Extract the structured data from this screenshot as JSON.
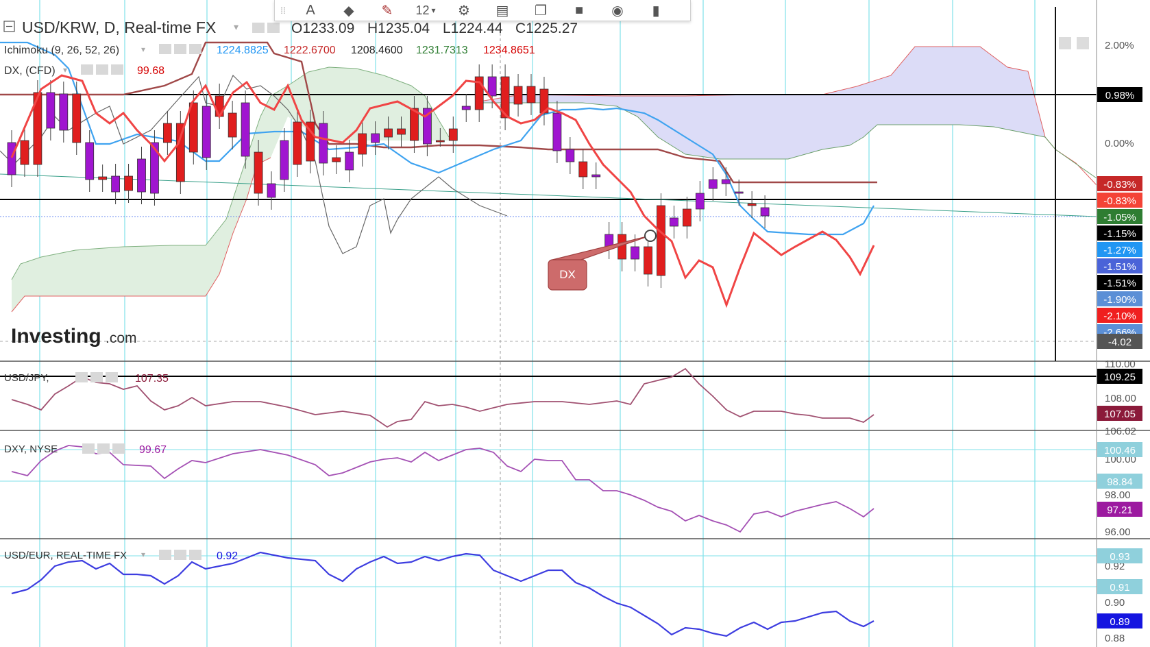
{
  "header": {
    "symbol": "USD/KRW, D, Real-time FX",
    "o": "O1233.09",
    "h": "H1235.04",
    "l": "L1224.44",
    "c": "C1225.27"
  },
  "ichimoku": {
    "label": "Ichimoku (9, 26, 52, 26)",
    "values": [
      "1224.8825",
      "1222.6700",
      "1208.4600",
      "1231.7313",
      "1234.8651"
    ],
    "colors": [
      "#2196f3",
      "#c62828",
      "#222222",
      "#2e7d32",
      "#d50000"
    ]
  },
  "dx_indicator": {
    "label": "DX, (CFD)",
    "value": "99.68",
    "color": "#d50000"
  },
  "toolbar": {
    "font_size": "12"
  },
  "watermark": {
    "brand": "Investing",
    "suffix": ".com"
  },
  "callout": {
    "text": "DX"
  },
  "main_axis": {
    "ticks": [
      "2.00%",
      "0.00%"
    ],
    "badges": [
      {
        "text": "0.98%",
        "bg": "#000000"
      },
      {
        "text": "-0.83%",
        "bg": "#c62828"
      },
      {
        "text": "-0.83%",
        "bg": "#f44336"
      },
      {
        "text": "-1.05%",
        "bg": "#2e7d32"
      },
      {
        "text": "-1.15%",
        "bg": "#000000"
      },
      {
        "text": "-1.27%",
        "bg": "#2196f3"
      },
      {
        "text": "-1.51%",
        "bg": "#4a63d8"
      },
      {
        "text": "-1.51%",
        "bg": "#000000"
      },
      {
        "text": "-1.90%",
        "bg": "#5b8fd6"
      },
      {
        "text": "-2.10%",
        "bg": "#f01f1f"
      },
      {
        "text": "-2.66%",
        "bg": "#5b8fd6"
      },
      {
        "text": "-4.02",
        "bg": "#555555"
      }
    ]
  },
  "panes": {
    "jpy": {
      "label": "USD/JPY,",
      "value": "107.35",
      "color": "#a05070",
      "ticks": [
        "110.00",
        "108.00",
        "106.02"
      ],
      "badges": [
        {
          "text": "109.25",
          "bg": "#000000"
        },
        {
          "text": "107.05",
          "bg": "#8b1a3a"
        }
      ]
    },
    "dxy": {
      "label": "DXY, NYSE",
      "value": "99.67",
      "color": "#a450b4",
      "ticks": [
        "100.00",
        "98.00",
        "96.00"
      ],
      "badges": [
        {
          "text": "100.46",
          "bg": "#8fd0dc"
        },
        {
          "text": "98.84",
          "bg": "#8fd0dc"
        },
        {
          "text": "97.21",
          "bg": "#9c1aa0"
        }
      ]
    },
    "eur": {
      "label": "USD/EUR, REAL-TIME FX",
      "value": "0.92",
      "color": "#3d3de0",
      "ticks": [
        "0.92",
        "0.90",
        "0.88"
      ],
      "badges": [
        {
          "text": "0.93",
          "bg": "#8fd0dc"
        },
        {
          "text": "0.91",
          "bg": "#8fd0dc"
        },
        {
          "text": "0.89",
          "bg": "#1515e0"
        }
      ]
    }
  },
  "chart_data": {
    "type": "candlestick",
    "candles": [
      [
        0,
        0,
        4
      ],
      [
        1,
        0,
        0
      ],
      [
        1,
        1,
        6
      ],
      [
        0,
        1,
        3
      ],
      [
        0,
        1,
        3
      ],
      [
        1,
        0,
        1
      ],
      [
        0,
        0,
        1
      ],
      [
        1,
        1,
        5
      ],
      [
        0,
        1,
        3
      ],
      [
        1,
        1,
        3
      ],
      [
        0,
        0,
        1
      ],
      [
        0,
        0,
        0
      ],
      [
        1,
        1,
        3
      ],
      [
        1,
        0,
        3
      ],
      [
        1,
        1,
        4
      ],
      [
        0,
        1,
        3
      ],
      [
        1,
        1,
        1
      ],
      [
        1,
        0,
        1
      ],
      [
        0,
        0,
        4
      ],
      [
        1,
        0,
        2
      ],
      [
        0,
        0,
        1
      ],
      [
        0,
        1,
        1
      ],
      [
        1,
        1,
        4
      ],
      [
        1,
        1,
        5
      ],
      [
        0,
        0,
        2
      ],
      [
        1,
        0,
        1
      ],
      [
        0,
        0,
        0
      ],
      [
        1,
        1,
        3
      ],
      [
        0,
        1,
        2
      ],
      [
        1,
        1,
        2
      ],
      [
        1,
        1,
        2
      ],
      [
        1,
        0,
        2
      ],
      [
        0,
        1,
        3
      ],
      [
        1,
        0,
        1
      ],
      [
        1,
        0,
        2
      ],
      [
        0,
        0,
        1
      ],
      [
        1,
        1,
        3
      ],
      [
        0,
        1,
        3
      ],
      [
        1,
        0,
        1
      ],
      [
        1,
        1,
        1
      ],
      [
        1,
        1,
        2
      ],
      [
        1,
        0,
        1
      ],
      [
        0,
        1,
        1
      ],
      [
        0,
        1,
        2
      ],
      [
        1,
        1,
        1
      ],
      [
        0,
        1,
        1
      ],
      [
        0,
        0,
        2
      ],
      [
        1,
        0,
        4
      ],
      [
        0,
        1,
        4
      ],
      [
        1,
        0,
        1
      ],
      [
        1,
        0,
        1
      ],
      [
        0,
        1,
        2
      ],
      [
        1,
        1,
        2
      ],
      [
        0,
        0,
        1
      ],
      [
        0,
        1,
        1
      ],
      [
        0,
        0,
        0
      ],
      [
        0,
        1,
        0
      ],
      [
        1,
        0,
        0
      ],
      [
        0,
        1,
        0
      ]
    ],
    "series": [
      {
        "name": "DX, (CFD)",
        "values": []
      },
      {
        "name": "USD/JPY,",
        "values": []
      },
      {
        "name": "DXY, NYSE",
        "values": []
      },
      {
        "name": "USD/EUR, REAL-TIME FX",
        "values": []
      }
    ]
  }
}
